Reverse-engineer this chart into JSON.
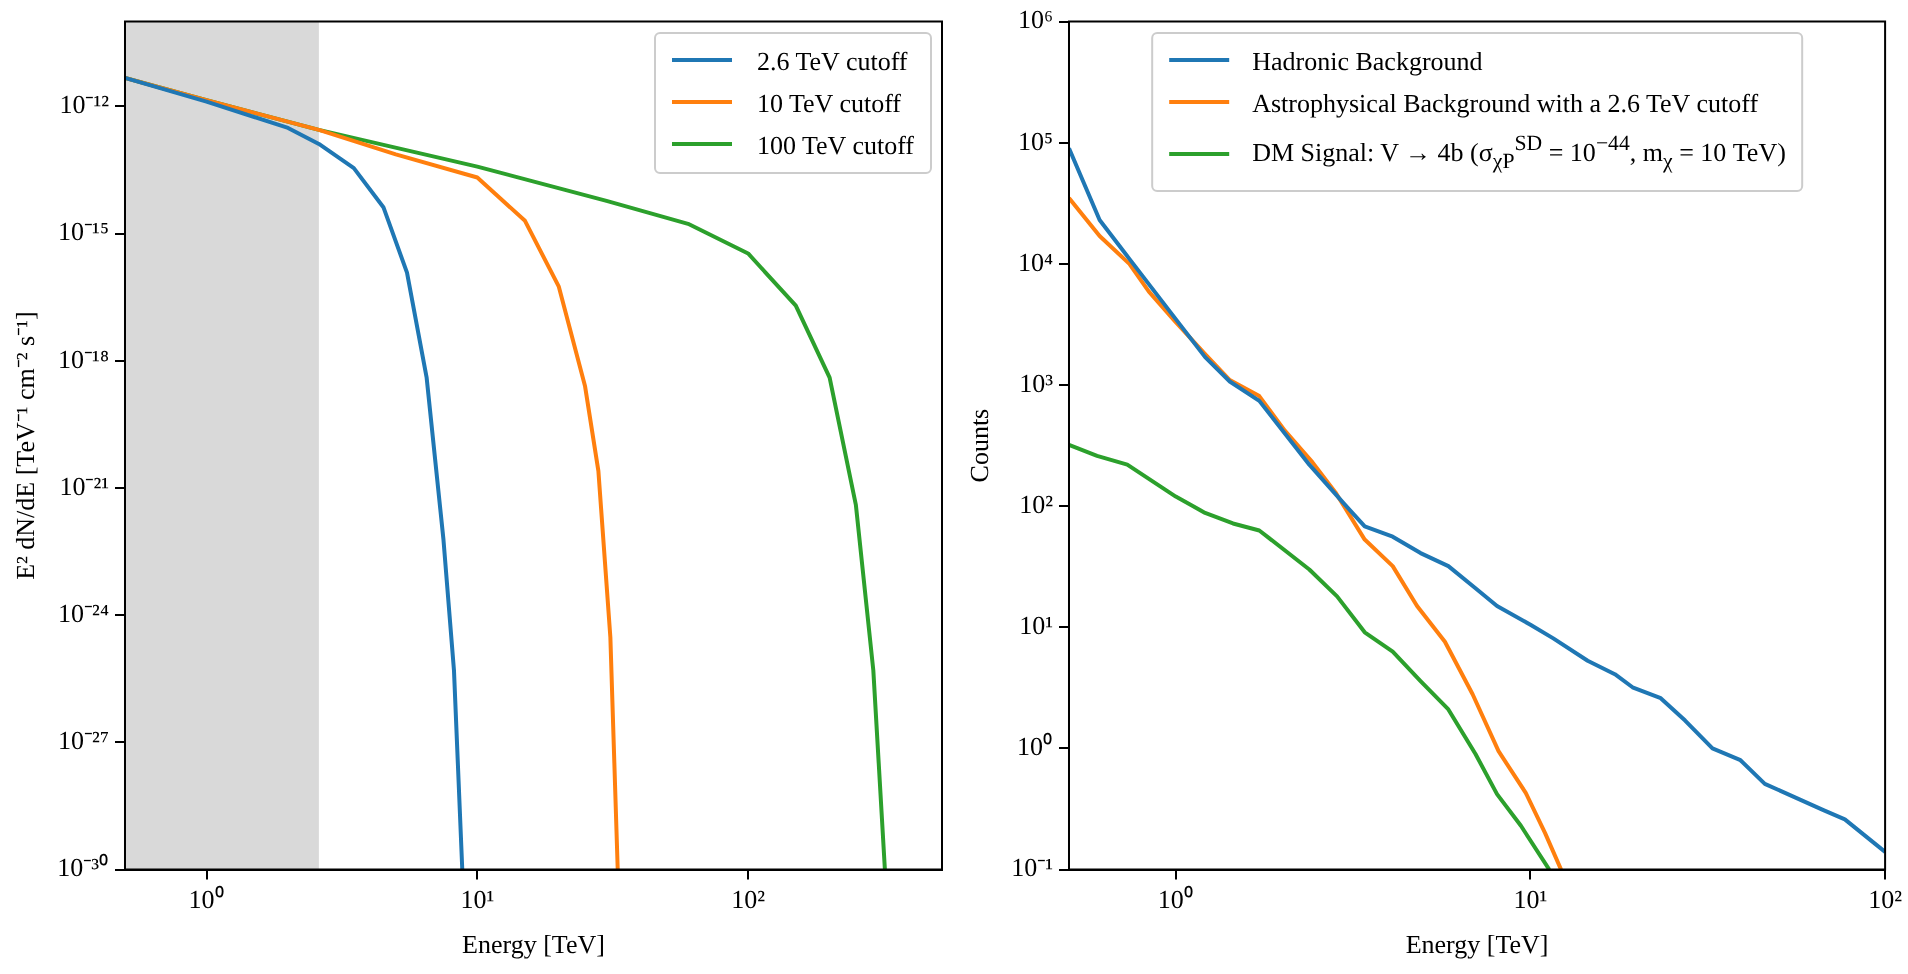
{
  "chart_data": [
    {
      "type": "line",
      "xlabel": "Energy [TeV]",
      "ylabel": "E² dN/dE [TeV⁻¹ cm⁻² s⁻¹]",
      "log": "xy",
      "grid": false,
      "legend": "top right",
      "xlim": [
        0.5,
        520
      ],
      "xticks": [
        {
          "value": 1,
          "label": "10⁰"
        },
        {
          "value": 10,
          "label": "10¹"
        },
        {
          "value": 100,
          "label": "10²"
        }
      ],
      "ylim": [
        1e-30,
        1e-10
      ],
      "yticks": [
        {
          "value": 1e-30,
          "label": "10⁻³⁰"
        },
        {
          "value": 1e-27,
          "label": "10⁻²⁷"
        },
        {
          "value": 1e-24,
          "label": "10⁻²⁴"
        },
        {
          "value": 1e-21,
          "label": "10⁻²¹"
        },
        {
          "value": 1e-18,
          "label": "10⁻¹⁸"
        },
        {
          "value": 1e-15,
          "label": "10⁻¹⁵"
        },
        {
          "value": 1e-12,
          "label": "10⁻¹²"
        }
      ],
      "bands": [
        {
          "axis": "x",
          "from": 0.5,
          "to": 2.6,
          "color": "#d9d9d9"
        }
      ],
      "series": [
        {
          "name": "2.6 TeV cutoff",
          "color": "#1f77b4",
          "x": [
            0.5,
            1,
            2,
            2.6,
            3.5,
            4.5,
            5.5,
            6.5,
            7.5,
            8.2,
            8.8
          ],
          "values": [
            4.7e-12,
            1.3e-12,
            3.1e-13,
            1.3e-13,
            3.5e-14,
            4.2e-15,
            1.2e-16,
            4e-19,
            6e-23,
            5e-26,
            1e-30
          ]
        },
        {
          "name": "10 TeV cutoff",
          "color": "#ff7f0e",
          "x": [
            0.5,
            1,
            2.6,
            5,
            10,
            15,
            20,
            25,
            28,
            31,
            33
          ],
          "values": [
            4.7e-12,
            1.4e-12,
            2.8e-13,
            7.4e-14,
            2.1e-14,
            2e-15,
            5.6e-17,
            2.5e-19,
            2.5e-21,
            3e-25,
            1e-30
          ]
        },
        {
          "name": "100 TeV cutoff",
          "color": "#2ca02c",
          "x": [
            0.5,
            1,
            2.6,
            10,
            30,
            60,
            100,
            150,
            200,
            250,
            290,
            320
          ],
          "values": [
            4.7e-12,
            1.4e-12,
            2.8e-13,
            3.8e-14,
            5.9e-15,
            1.7e-15,
            3.4e-16,
            2e-17,
            4e-19,
            4e-22,
            5e-26,
            1e-30
          ]
        }
      ]
    },
    {
      "type": "line",
      "xlabel": "Energy [TeV]",
      "ylabel": "Counts",
      "log": "xy",
      "grid": false,
      "legend": "top",
      "xlim": [
        0.5,
        100
      ],
      "xticks": [
        {
          "value": 1,
          "label": "10⁰"
        },
        {
          "value": 10,
          "label": "10¹"
        },
        {
          "value": 100,
          "label": "10²"
        }
      ],
      "ylim": [
        0.1,
        1000000
      ],
      "yticks": [
        {
          "value": 0.1,
          "label": "10⁻¹"
        },
        {
          "value": 1,
          "label": "10⁰"
        },
        {
          "value": 10,
          "label": "10¹"
        },
        {
          "value": 100,
          "label": "10²"
        },
        {
          "value": 1000,
          "label": "10³"
        },
        {
          "value": 10000,
          "label": "10⁴"
        },
        {
          "value": 100000,
          "label": "10⁵"
        },
        {
          "value": 1000000,
          "label": "10⁶"
        }
      ],
      "series": [
        {
          "name": "Hadronic Background",
          "color": "#1f77b4",
          "x": [
            0.5,
            0.61,
            0.74,
            1.0,
            1.21,
            1.42,
            1.72,
            2.38,
            2.98,
            3.41,
            4.09,
            4.9,
            5.87,
            7.0,
            8.05,
            10,
            11.6,
            14.5,
            17.3,
            19.4,
            23.3,
            27.3,
            32.6,
            39.1,
            45.8,
            67,
            77,
            100
          ],
          "values": [
            90000,
            23000,
            11000,
            3500,
            1700,
            1070,
            740,
            220,
            105,
            68,
            56,
            41,
            32,
            21,
            15,
            10.5,
            8.1,
            5.3,
            4.1,
            3.2,
            2.6,
            1.7,
            1.0,
            0.8,
            0.51,
            0.31,
            0.26,
            0.14
          ]
        },
        {
          "name": "Astrophysical Background with a 2.6 TeV cutoff",
          "color": "#ff7f0e",
          "x": [
            0.5,
            0.61,
            0.74,
            0.84,
            1.0,
            1.21,
            1.42,
            1.72,
            2.03,
            2.43,
            2.82,
            3.41,
            4.09,
            4.79,
            5.74,
            6.87,
            8.13,
            9.7,
            11.0,
            12.2
          ],
          "values": [
            35000,
            17000,
            10000,
            5900,
            3300,
            1800,
            1100,
            810,
            420,
            230,
            130,
            53,
            32,
            15,
            7.6,
            2.8,
            0.95,
            0.43,
            0.2,
            0.1
          ]
        },
        {
          "name": "DM Signal: V → 4b (σ$_{χP}$$^{SD}$ = 10$^{−44}$, m$_{χ}$ = 10 TeV)",
          "color": "#2ca02c",
          "x": [
            0.5,
            0.6,
            0.73,
            1.0,
            1.21,
            1.45,
            1.72,
            2.38,
            2.85,
            3.41,
            4.09,
            4.9,
            5.87,
            7.0,
            8.05,
            9.4,
            11.3
          ],
          "values": [
            320,
            260,
            220,
            120,
            88,
            72,
            63,
            30,
            18,
            9.1,
            6.3,
            3.6,
            2.1,
            0.9,
            0.42,
            0.23,
            0.1
          ]
        }
      ]
    }
  ]
}
